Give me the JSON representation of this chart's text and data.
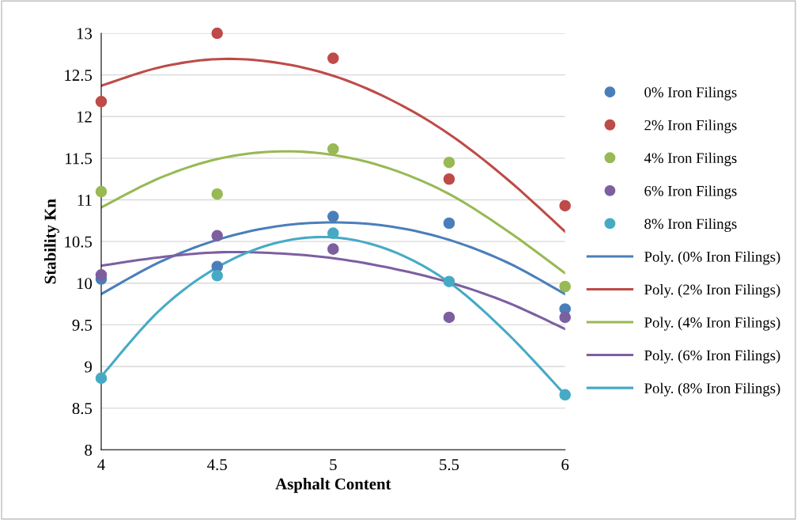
{
  "chart_data": {
    "type": "scatter",
    "xlabel": "Asphalt Content",
    "ylabel": "Stability Kn",
    "xlim": [
      4,
      6
    ],
    "xticks": [
      4,
      4.5,
      5,
      5.5,
      6
    ],
    "ylim": [
      8,
      13
    ],
    "yticks": [
      8,
      8.5,
      9,
      9.5,
      10,
      10.5,
      11,
      11.5,
      12,
      12.5,
      13
    ],
    "grid": "y",
    "legend": "right",
    "marker": "circle",
    "series": [
      {
        "name": "0% Iron Filings",
        "color": "#4a7ebb",
        "x": [
          4,
          4.5,
          5,
          5.5,
          6
        ],
        "values": [
          10.05,
          10.2,
          10.8,
          10.72,
          9.69
        ]
      },
      {
        "name": "2% Iron Filings",
        "color": "#be4b48",
        "x": [
          4,
          4.5,
          5,
          5.5,
          6
        ],
        "values": [
          12.18,
          13.0,
          12.7,
          11.25,
          10.93
        ]
      },
      {
        "name": "4% Iron Filings",
        "color": "#98b954",
        "x": [
          4,
          4.5,
          5,
          5.5,
          6
        ],
        "values": [
          11.1,
          11.07,
          11.61,
          11.45,
          9.96
        ]
      },
      {
        "name": "6% Iron Filings",
        "color": "#7d5fa0",
        "x": [
          4,
          4.5,
          5,
          5.5,
          6
        ],
        "values": [
          10.1,
          10.57,
          10.41,
          9.59,
          9.59
        ]
      },
      {
        "name": "8% Iron Filings",
        "color": "#46aac5",
        "x": [
          4,
          4.5,
          5,
          5.5,
          6
        ],
        "values": [
          8.86,
          10.09,
          10.6,
          10.02,
          8.66
        ]
      },
      {
        "name": "Poly. (0% Iron Filings)",
        "type": "line",
        "marker": "none",
        "color": "#4a7ebb",
        "x": [
          4,
          4.25,
          4.5,
          4.75,
          5,
          5.25,
          5.5,
          5.75,
          6
        ],
        "values": [
          9.87,
          10.25,
          10.52,
          10.68,
          10.73,
          10.68,
          10.52,
          10.25,
          9.87
        ]
      },
      {
        "name": "Poly. (2% Iron Filings)",
        "type": "line",
        "marker": "none",
        "color": "#be4b48",
        "x": [
          4,
          4.25,
          4.5,
          4.75,
          5,
          5.25,
          5.5,
          5.75,
          6
        ],
        "values": [
          12.37,
          12.59,
          12.69,
          12.65,
          12.49,
          12.2,
          11.79,
          11.25,
          10.62
        ]
      },
      {
        "name": "Poly. (4% Iron Filings)",
        "type": "line",
        "marker": "none",
        "color": "#98b954",
        "x": [
          4,
          4.25,
          4.5,
          4.75,
          5,
          5.25,
          5.5,
          5.75,
          6
        ],
        "values": [
          10.91,
          11.26,
          11.49,
          11.58,
          11.54,
          11.37,
          11.07,
          10.63,
          10.12
        ]
      },
      {
        "name": "Poly. (6% Iron Filings)",
        "type": "line",
        "marker": "none",
        "color": "#7d5fa0",
        "x": [
          4,
          4.25,
          4.5,
          4.75,
          5,
          5.25,
          5.5,
          5.75,
          6
        ],
        "values": [
          10.21,
          10.31,
          10.37,
          10.36,
          10.3,
          10.18,
          10.01,
          9.77,
          9.45
        ]
      },
      {
        "name": "Poly. (8% Iron Filings)",
        "type": "line",
        "marker": "none",
        "color": "#46aac5",
        "x": [
          4,
          4.25,
          4.5,
          4.75,
          5,
          5.25,
          5.5,
          5.75,
          6
        ],
        "values": [
          8.88,
          9.67,
          10.19,
          10.48,
          10.55,
          10.39,
          10.01,
          9.4,
          8.66
        ]
      }
    ]
  }
}
